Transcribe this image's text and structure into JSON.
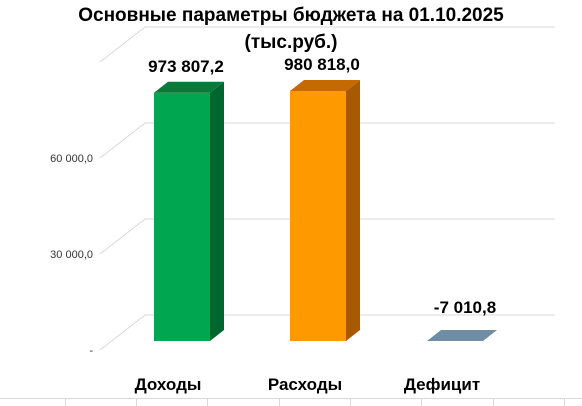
{
  "chart_data": {
    "type": "bar",
    "title_lines": [
      "Основные параметры бюджета на 01.10.2025",
      "(тыс.руб.)"
    ],
    "categories": [
      "Доходы",
      "Расходы",
      "Дефицит"
    ],
    "values": [
      973807.2,
      980818.0,
      -7010.8
    ],
    "value_labels": [
      "973 807,2",
      "980 818,0",
      "-7 010,8"
    ],
    "y_ticks": [
      {
        "value": 0,
        "label": "-"
      },
      {
        "value": 30000,
        "label": "30 000,0"
      },
      {
        "value": 60000,
        "label": "60 000,0"
      }
    ],
    "colors": {
      "income_front": "#00a650",
      "income_side": "#00662f",
      "income_top": "#0a7a3a",
      "expense_front": "#ff9900",
      "expense_side": "#a85a00",
      "expense_top": "#c46a00",
      "deficit_flat": "#6f8ea6",
      "gridline": "#d9d9d9"
    },
    "grid": true,
    "legend": "none"
  }
}
